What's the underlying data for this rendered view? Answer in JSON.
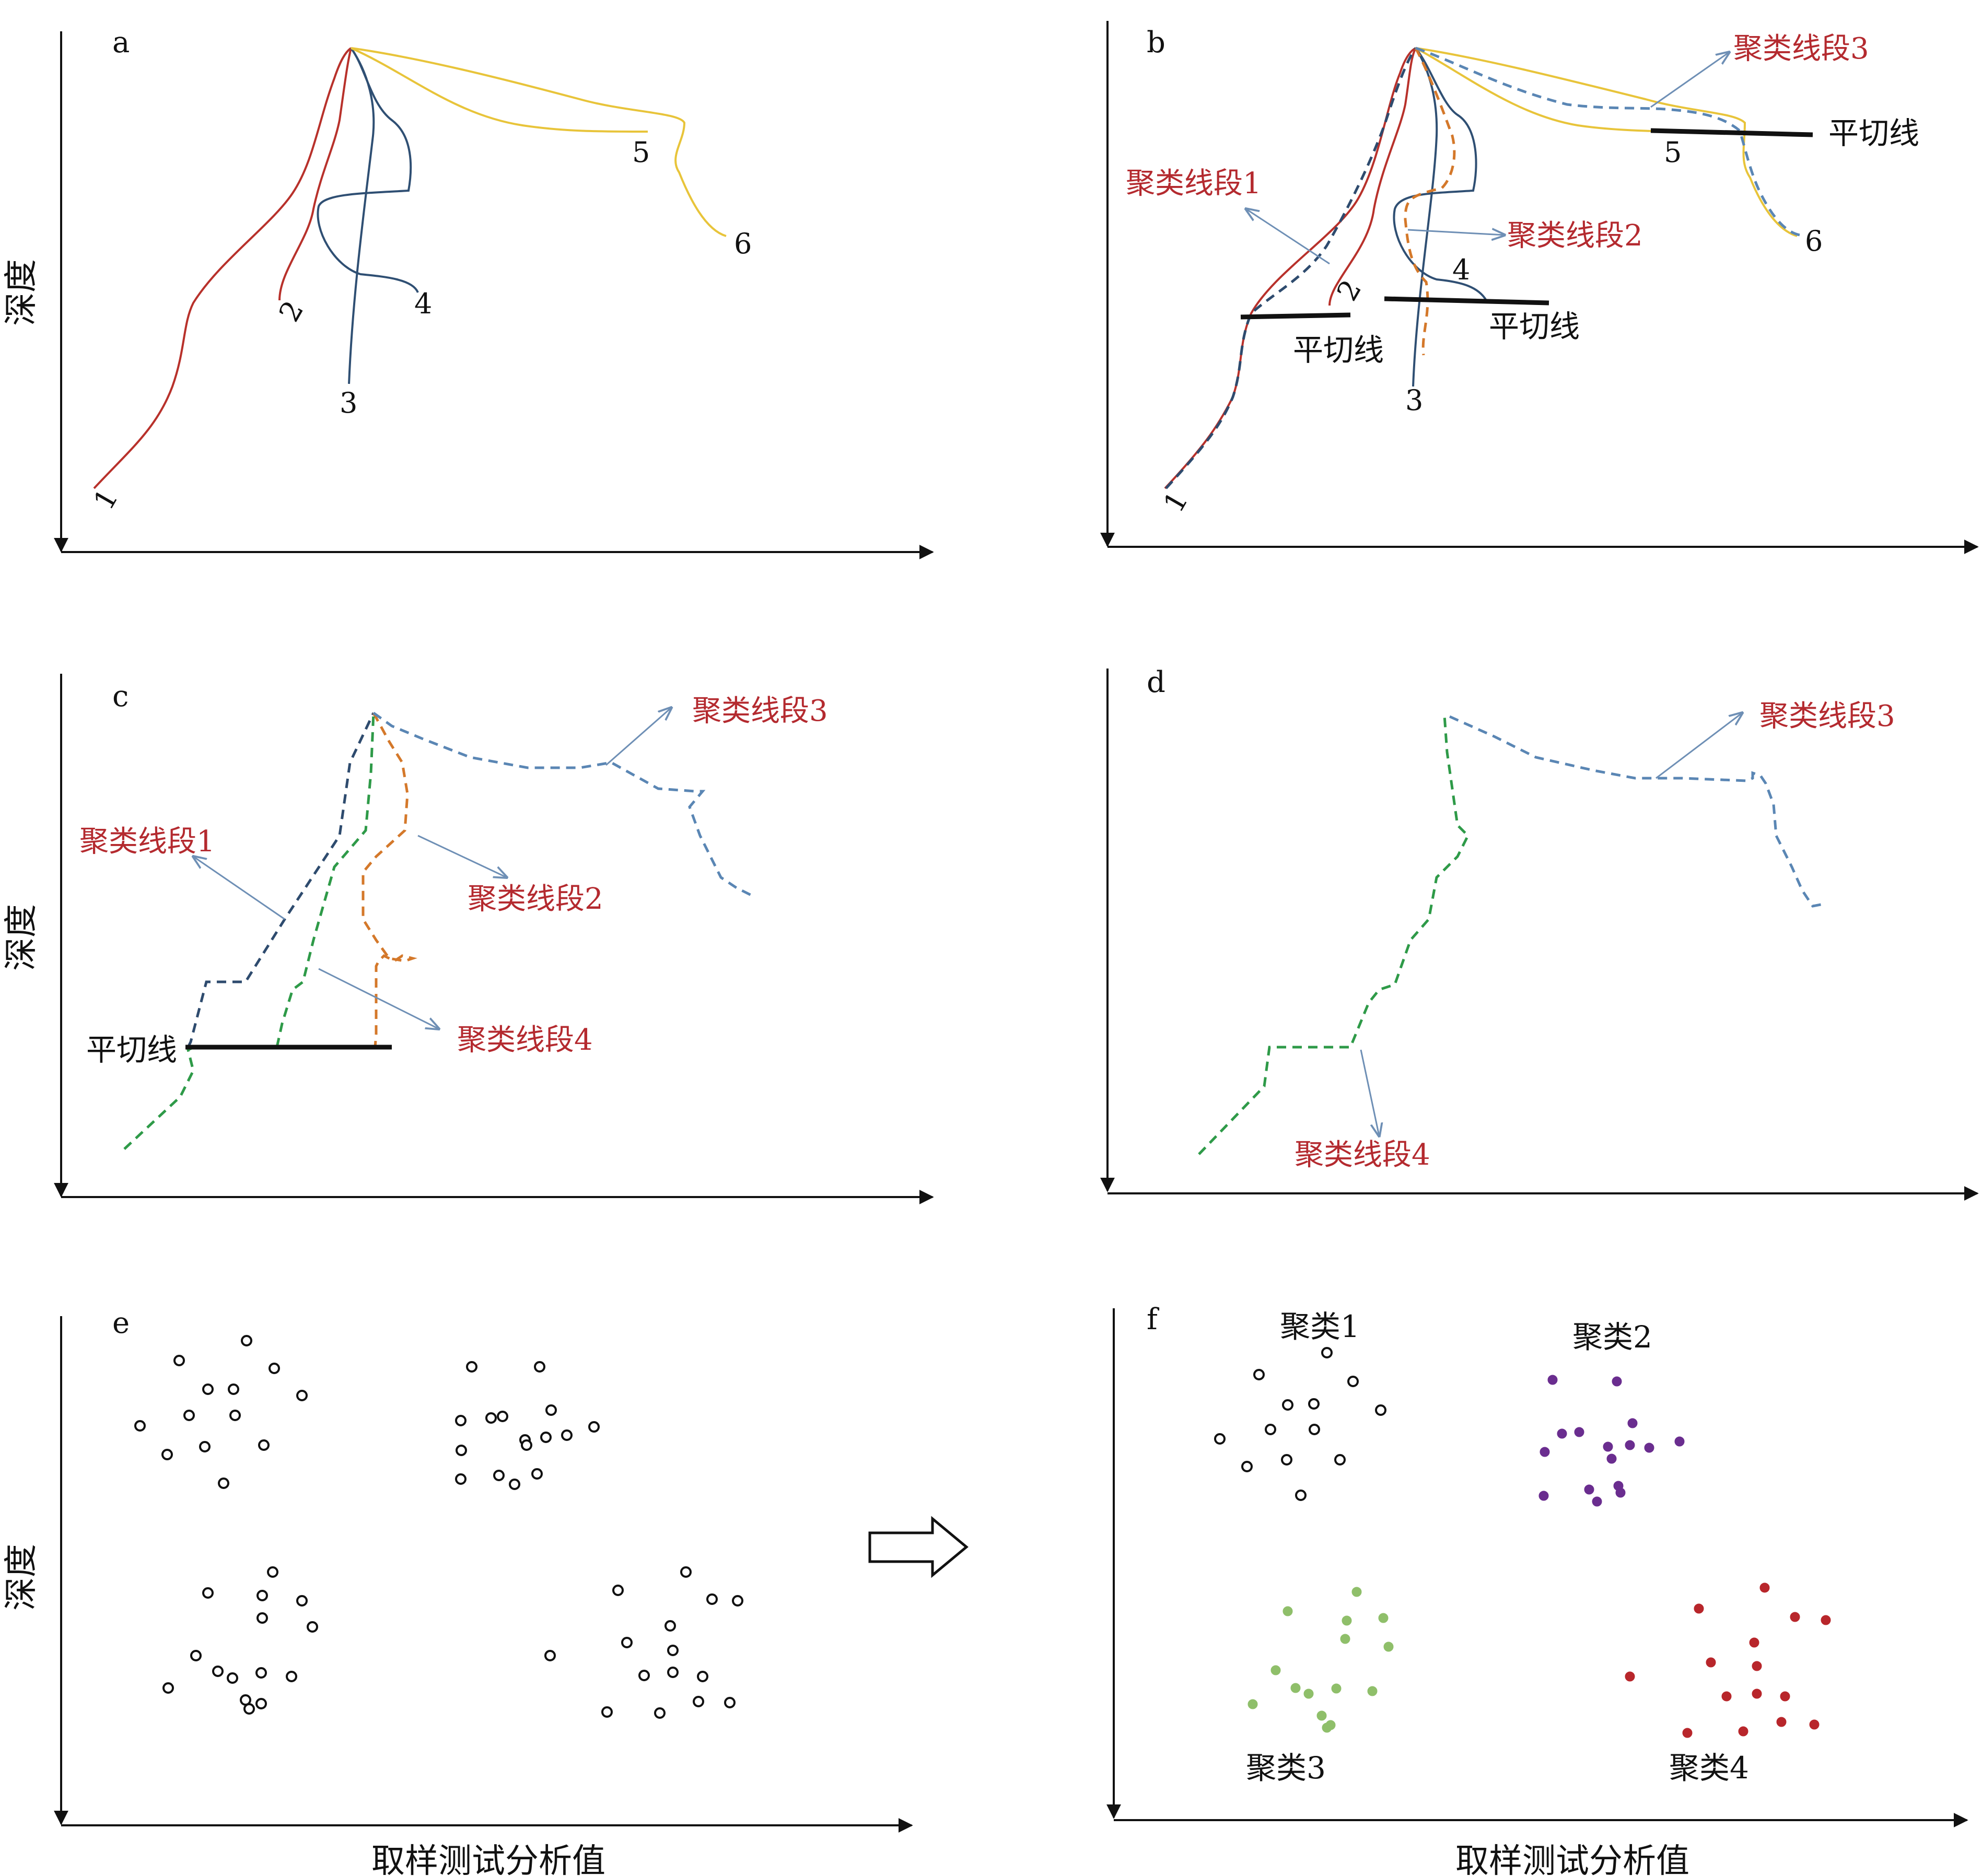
{
  "panels": {
    "a": {
      "label": "a",
      "ylabel": "深度",
      "line_labels": [
        "1",
        "2",
        "3",
        "4",
        "5",
        "6"
      ]
    },
    "b": {
      "label": "b",
      "line_labels": [
        "1",
        "2",
        "3",
        "4",
        "5",
        "6"
      ],
      "cut_label": "平切线",
      "segments": [
        "聚类线段1",
        "聚类线段2",
        "聚类线段3"
      ]
    },
    "c": {
      "label": "c",
      "ylabel": "深度",
      "cut_label": "平切线",
      "segments": [
        "聚类线段1",
        "聚类线段2",
        "聚类线段3",
        "聚类线段4"
      ]
    },
    "d": {
      "label": "d",
      "segments": [
        "聚类线段3",
        "聚类线段4"
      ]
    },
    "e": {
      "label": "e",
      "ylabel": "深度",
      "xlabel": "取样测试分析值"
    },
    "f": {
      "label": "f",
      "xlabel": "取样测试分析值",
      "clusters": [
        "聚类1",
        "聚类2",
        "聚类3",
        "聚类4"
      ]
    }
  },
  "colors": {
    "axis": "#111111",
    "red_line": "#b8312b",
    "blue_line": "#2f4f73",
    "yellow_line": "#e8c43a",
    "dashed_blue": "#5a86b4",
    "dashed_orange": "#d4782a",
    "dashed_navy": "#2e4b6e",
    "dashed_green": "#2e9a48",
    "arrow_gray_blue": "#6e8fb5",
    "cluster2_purple": "#6a2d8f",
    "cluster3_green": "#8fbf6a",
    "cluster4_red": "#b8262b",
    "label_red": "#b42a2f"
  },
  "icons": {
    "transition_arrow": "hollow-right-arrow-icon"
  }
}
